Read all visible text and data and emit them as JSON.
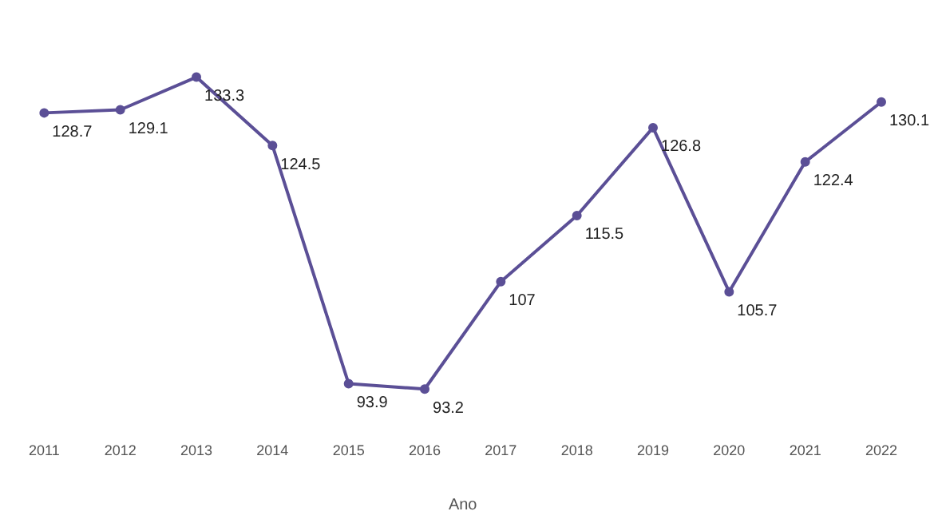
{
  "chart_data": {
    "type": "line",
    "xlabel": "Ano",
    "categories": [
      "2011",
      "2012",
      "2013",
      "2014",
      "2015",
      "2016",
      "2017",
      "2018",
      "2019",
      "2020",
      "2021",
      "2022"
    ],
    "series": [
      {
        "color": "#5b4f96",
        "values": [
          128.7,
          129.1,
          133.3,
          124.5,
          93.9,
          93.2,
          107,
          115.5,
          126.8,
          105.7,
          122.4,
          130.1
        ]
      }
    ],
    "data_labels": true,
    "marker": "circle",
    "grid": false,
    "legend": false,
    "tick_labels": "x"
  }
}
